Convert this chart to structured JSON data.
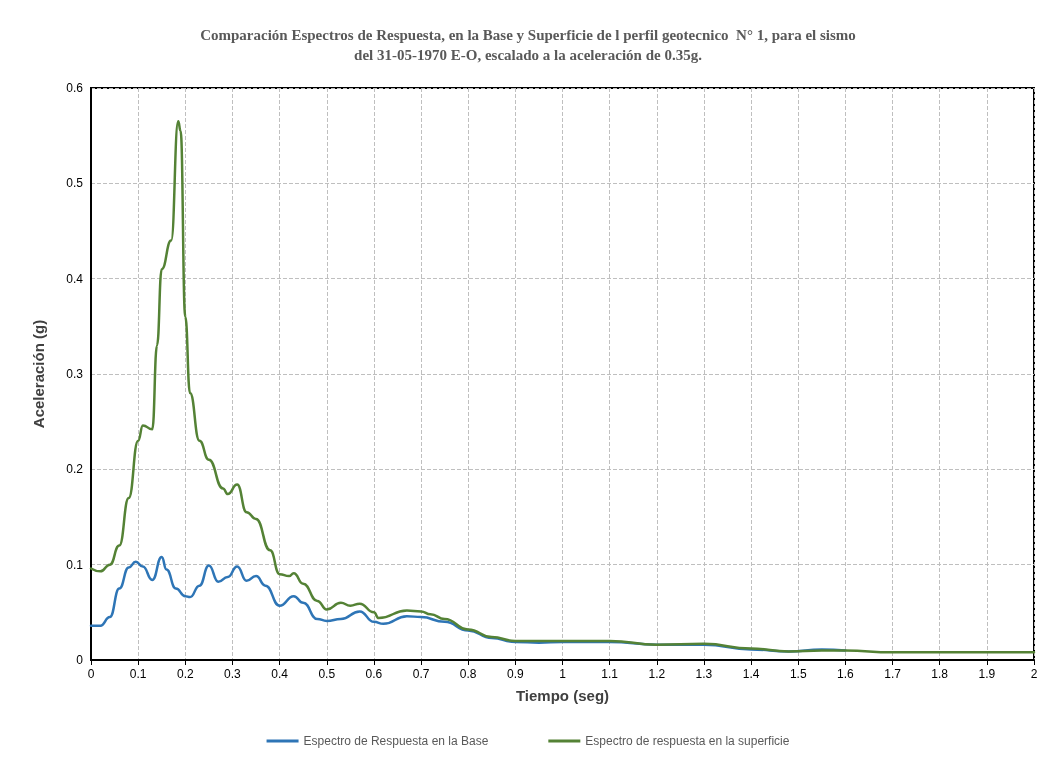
{
  "chart_data": {
    "type": "line",
    "title": "Comparación Espectros de Respuesta, en la Base y Superficie de l perfil geotecnico  N° 1, para el sismo\ndel 31-05-1970 E-O, escalado a la aceleración de 0.35g.",
    "xlabel": "Tiempo (seg)",
    "ylabel": "Aceleración (g)",
    "xlim": [
      0,
      2
    ],
    "ylim": [
      0,
      0.6
    ],
    "xticks": [
      0,
      0.1,
      0.2,
      0.3,
      0.4,
      0.5,
      0.6,
      0.7,
      0.8,
      0.9,
      1,
      1.1,
      1.2,
      1.3,
      1.4,
      1.5,
      1.6,
      1.7,
      1.8,
      1.9,
      2
    ],
    "yticks": [
      0,
      0.1,
      0.2,
      0.3,
      0.4,
      0.5,
      0.6
    ],
    "grid": true,
    "legend": "bottom",
    "marker": "none",
    "line_style": "solid",
    "series": [
      {
        "name": "Espectro de Respuesta en la Base",
        "color": "#2e75b6",
        "x": [
          0,
          0.02,
          0.04,
          0.06,
          0.08,
          0.095,
          0.11,
          0.13,
          0.15,
          0.16,
          0.18,
          0.2,
          0.21,
          0.23,
          0.25,
          0.27,
          0.29,
          0.31,
          0.33,
          0.35,
          0.37,
          0.4,
          0.43,
          0.45,
          0.48,
          0.5,
          0.53,
          0.57,
          0.6,
          0.62,
          0.67,
          0.7,
          0.75,
          0.8,
          0.85,
          0.9,
          0.95,
          1,
          1.1,
          1.2,
          1.3,
          1.4,
          1.48,
          1.55,
          1.6
        ],
        "values": [
          0.036,
          0.036,
          0.045,
          0.075,
          0.097,
          0.103,
          0.098,
          0.084,
          0.108,
          0.095,
          0.075,
          0.067,
          0.066,
          0.078,
          0.099,
          0.082,
          0.087,
          0.098,
          0.083,
          0.088,
          0.078,
          0.057,
          0.067,
          0.06,
          0.043,
          0.041,
          0.043,
          0.051,
          0.04,
          0.038,
          0.046,
          0.045,
          0.04,
          0.031,
          0.023,
          0.019,
          0.018,
          0.019,
          0.019,
          0.016,
          0.016,
          0.011,
          0.009,
          0.011,
          0.01
        ]
      },
      {
        "name": "Espectro de respuesta en la superficie",
        "color": "#548235",
        "x": [
          0,
          0.02,
          0.04,
          0.06,
          0.08,
          0.1,
          0.11,
          0.13,
          0.14,
          0.15,
          0.17,
          0.185,
          0.19,
          0.2,
          0.21,
          0.23,
          0.25,
          0.28,
          0.29,
          0.31,
          0.33,
          0.35,
          0.38,
          0.4,
          0.42,
          0.43,
          0.45,
          0.48,
          0.5,
          0.53,
          0.55,
          0.57,
          0.6,
          0.61,
          0.67,
          0.7,
          0.72,
          0.75,
          0.8,
          0.85,
          0.9,
          1,
          1.1,
          1.2,
          1.3,
          1.4,
          1.48,
          1.55,
          1.6,
          1.7,
          1.8,
          1.9,
          2
        ],
        "values": [
          0.096,
          0.093,
          0.1,
          0.12,
          0.17,
          0.23,
          0.246,
          0.242,
          0.33,
          0.41,
          0.44,
          0.565,
          0.555,
          0.36,
          0.28,
          0.23,
          0.21,
          0.18,
          0.174,
          0.184,
          0.155,
          0.148,
          0.115,
          0.09,
          0.088,
          0.091,
          0.08,
          0.062,
          0.053,
          0.06,
          0.057,
          0.059,
          0.05,
          0.044,
          0.052,
          0.051,
          0.048,
          0.043,
          0.032,
          0.024,
          0.02,
          0.02,
          0.02,
          0.016,
          0.017,
          0.012,
          0.009,
          0.01,
          0.01,
          0.008,
          0.008,
          0.008,
          0.008
        ]
      }
    ]
  }
}
